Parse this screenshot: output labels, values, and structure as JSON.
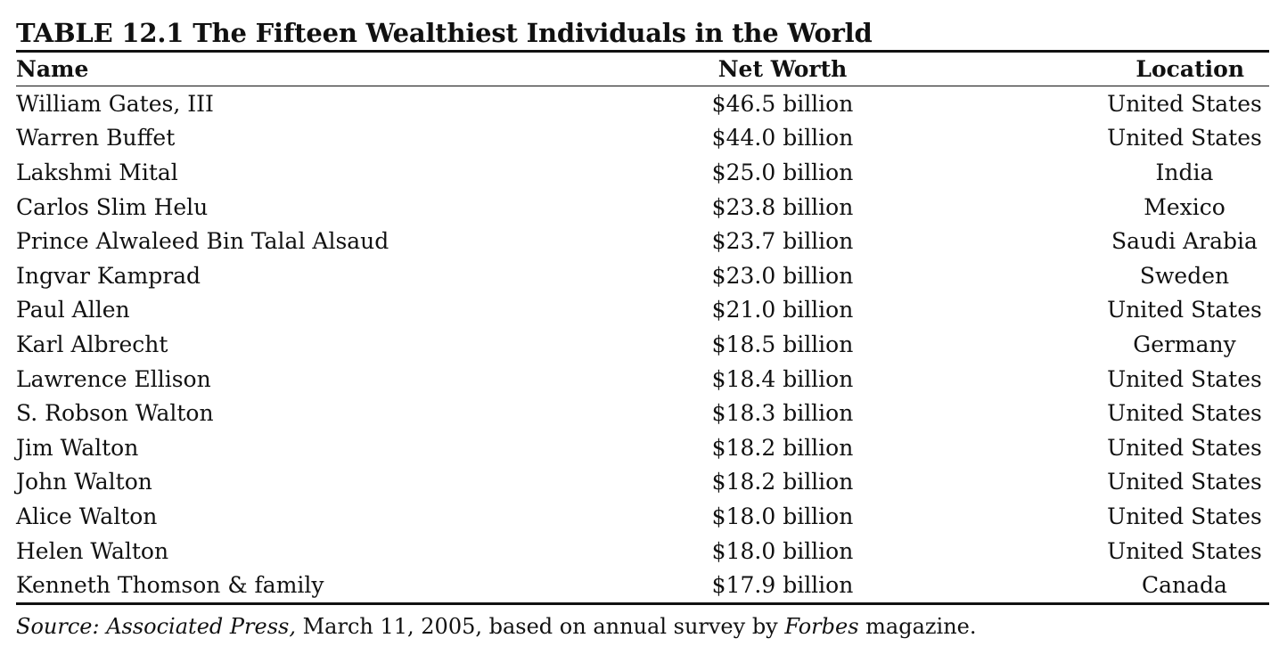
{
  "table": {
    "number": "TABLE 12.1",
    "title": "The Fifteen Wealthiest Individuals in the World",
    "headers": {
      "name": "Name",
      "net_worth": "Net Worth",
      "location": "Location"
    },
    "rows": [
      {
        "name": "William Gates, III",
        "net_worth": "$46.5 billion",
        "location": "United States"
      },
      {
        "name": "Warren Buffet",
        "net_worth": "$44.0 billion",
        "location": "United States"
      },
      {
        "name": "Lakshmi Mital",
        "net_worth": "$25.0 billion",
        "location": "India"
      },
      {
        "name": "Carlos Slim Helu",
        "net_worth": "$23.8 billion",
        "location": "Mexico"
      },
      {
        "name": "Prince Alwaleed Bin Talal Alsaud",
        "net_worth": "$23.7 billion",
        "location": "Saudi Arabia"
      },
      {
        "name": "Ingvar Kamprad",
        "net_worth": "$23.0 billion",
        "location": "Sweden"
      },
      {
        "name": "Paul Allen",
        "net_worth": "$21.0 billion",
        "location": "United States"
      },
      {
        "name": "Karl Albrecht",
        "net_worth": "$18.5 billion",
        "location": "Germany"
      },
      {
        "name": "Lawrence Ellison",
        "net_worth": "$18.4 billion",
        "location": "United States"
      },
      {
        "name": "S. Robson Walton",
        "net_worth": "$18.3 billion",
        "location": "United States"
      },
      {
        "name": "Jim Walton",
        "net_worth": "$18.2 billion",
        "location": "United States"
      },
      {
        "name": "John Walton",
        "net_worth": "$18.2 billion",
        "location": "United States"
      },
      {
        "name": "Alice Walton",
        "net_worth": "$18.0 billion",
        "location": "United States"
      },
      {
        "name": "Helen Walton",
        "net_worth": "$18.0 billion",
        "location": "United States"
      },
      {
        "name": "Kenneth Thomson & family",
        "net_worth": "$17.9 billion",
        "location": "Canada"
      }
    ]
  },
  "source": {
    "label": "Source:",
    "publication": "Associated Press,",
    "date_text": " March 11, 2005, based on annual survey by ",
    "magazine": "Forbes",
    "suffix": " magazine."
  }
}
